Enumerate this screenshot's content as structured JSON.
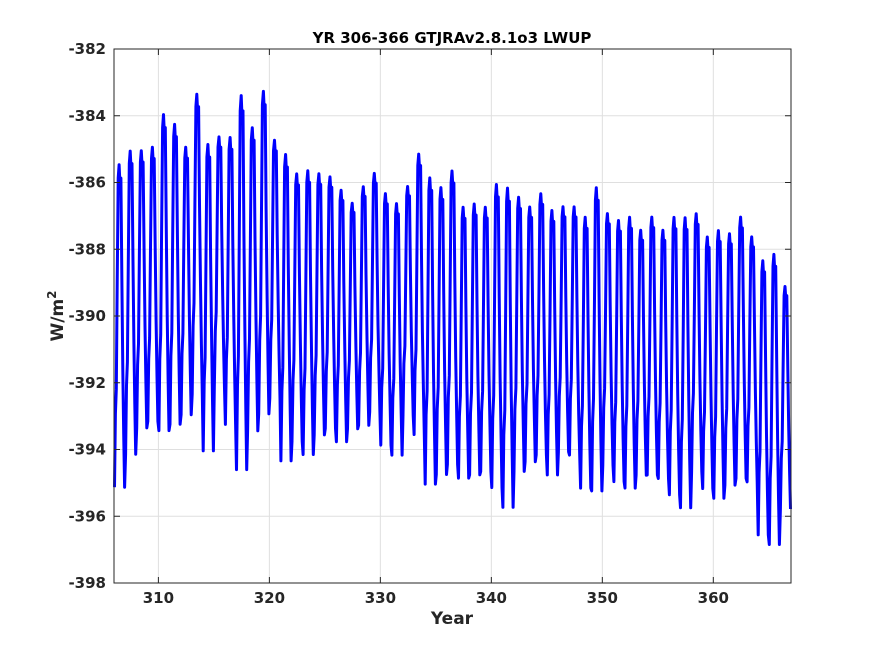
{
  "chart_data": {
    "type": "line",
    "title": "YR 306-366 GTJRAv2.8.1o3 LWUP",
    "xlabel": "Year",
    "ylabel_base": "W/m",
    "ylabel_sup": "2",
    "xlim": [
      306,
      367
    ],
    "ylim": [
      -398,
      -382
    ],
    "xticks": [
      310,
      320,
      330,
      340,
      350,
      360
    ],
    "xtick_labels": [
      "310",
      "320",
      "330",
      "340",
      "350",
      "360"
    ],
    "yticks": [
      -398,
      -396,
      -394,
      -392,
      -390,
      -388,
      -386,
      -384,
      -382
    ],
    "ytick_labels": [
      "-398",
      "-396",
      "-394",
      "-392",
      "-390",
      "-388",
      "-386",
      "-384",
      "-382"
    ],
    "grid": true,
    "series": [
      {
        "color": "#0000ff",
        "points_per_year": 12,
        "x_start": 306,
        "y_maxima": [
          -385.3,
          -384.9,
          -384.9,
          -384.8,
          -383.8,
          -384.1,
          -384.8,
          -383.2,
          -384.7,
          -384.5,
          -384.5,
          -383.2,
          -384.2,
          -383.1,
          -384.6,
          -385.0,
          -385.6,
          -385.5,
          -385.6,
          -385.7,
          -386.1,
          -386.5,
          -386.0,
          -385.6,
          -386.2,
          -386.5,
          -386.0,
          -385.0,
          -385.7,
          -386.0,
          -385.5,
          -386.6,
          -386.5,
          -386.6,
          -385.9,
          -386.0,
          -386.3,
          -386.6,
          -386.2,
          -386.7,
          -386.6,
          -386.6,
          -386.9,
          -386.0,
          -386.8,
          -387.0,
          -386.9,
          -387.3,
          -386.9,
          -387.3,
          -386.9,
          -386.9,
          -386.8,
          -387.5,
          -387.3,
          -387.4,
          -386.9,
          -387.5,
          -388.2,
          -388.0,
          -389.0
        ],
        "y_minima": [
          -395.3,
          -394.3,
          -393.5,
          -393.3,
          -393.6,
          -393.4,
          -393.1,
          -392.5,
          -394.2,
          -392.3,
          -393.4,
          -394.8,
          -393.6,
          -393.1,
          -392.6,
          -394.5,
          -393.9,
          -394.3,
          -393.7,
          -393.5,
          -393.9,
          -393.5,
          -393.4,
          -393.0,
          -394.0,
          -394.3,
          -393.1,
          -393.7,
          -395.2,
          -394.9,
          -394.6,
          -395.0,
          -394.9,
          -394.8,
          -395.3,
          -395.9,
          -394.8,
          -394.5,
          -394.3,
          -394.9,
          -394.2,
          -394.3,
          -395.3,
          -395.4,
          -394.6,
          -395.1,
          -395.3,
          -394.9,
          -394.9,
          -395.0,
          -395.5,
          -395.9,
          -394.8,
          -395.3,
          -395.6,
          -395.2,
          -395.0,
          -395.1,
          -396.7,
          -397.0,
          -395.9
        ]
      }
    ]
  }
}
